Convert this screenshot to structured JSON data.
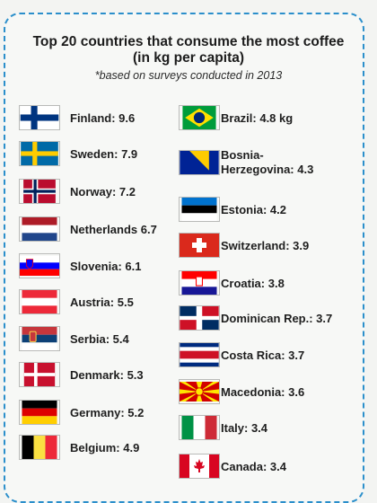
{
  "header": {
    "title_line1": "Top 20 countries that consume the most coffee",
    "title_line2": "(in kg per capita)",
    "subtitle": "*based on surveys conducted in 2013"
  },
  "left_column": [
    {
      "label": "Finland: 9.6",
      "flag_icon": "finland-flag-icon"
    },
    {
      "label": "Sweden: 7.9",
      "flag_icon": "sweden-flag-icon"
    },
    {
      "label": "Norway: 7.2",
      "flag_icon": "norway-flag-icon"
    },
    {
      "label": "Netherlands 6.7",
      "flag_icon": "netherlands-flag-icon"
    },
    {
      "label": "Slovenia: 6.1",
      "flag_icon": "slovenia-flag-icon"
    },
    {
      "label": "Austria: 5.5",
      "flag_icon": "austria-flag-icon"
    },
    {
      "label": "Serbia: 5.4",
      "flag_icon": "serbia-flag-icon"
    },
    {
      "label": "Denmark: 5.3",
      "flag_icon": "denmark-flag-icon"
    },
    {
      "label": "Germany: 5.2",
      "flag_icon": "germany-flag-icon"
    },
    {
      "label": "Belgium: 4.9",
      "flag_icon": "belgium-flag-icon"
    }
  ],
  "right_column": [
    {
      "label": "Brazil: 4.8 kg",
      "flag_icon": "brazil-flag-icon"
    },
    {
      "label": "Bosnia-\nHerzegovina: 4.3",
      "flag_icon": "bosnia-herzegovina-flag-icon"
    },
    {
      "label": "Estonia: 4.2",
      "flag_icon": "estonia-flag-icon"
    },
    {
      "label": "Switzerland: 3.9",
      "flag_icon": "switzerland-flag-icon"
    },
    {
      "label": "Croatia: 3.8",
      "flag_icon": "croatia-flag-icon"
    },
    {
      "label": "Dominican Rep.: 3.7",
      "flag_icon": "dominican-republic-flag-icon"
    },
    {
      "label": "Costa Rica: 3.7",
      "flag_icon": "costa-rica-flag-icon"
    },
    {
      "label": "Macedonia: 3.6",
      "flag_icon": "macedonia-flag-icon"
    },
    {
      "label": "Italy: 3.4",
      "flag_icon": "italy-flag-icon"
    },
    {
      "label": "Canada: 3.4",
      "flag_icon": "canada-flag-icon"
    }
  ],
  "colors": {
    "border_accent": "#2b8fcb",
    "text": "#1e1e1e"
  }
}
